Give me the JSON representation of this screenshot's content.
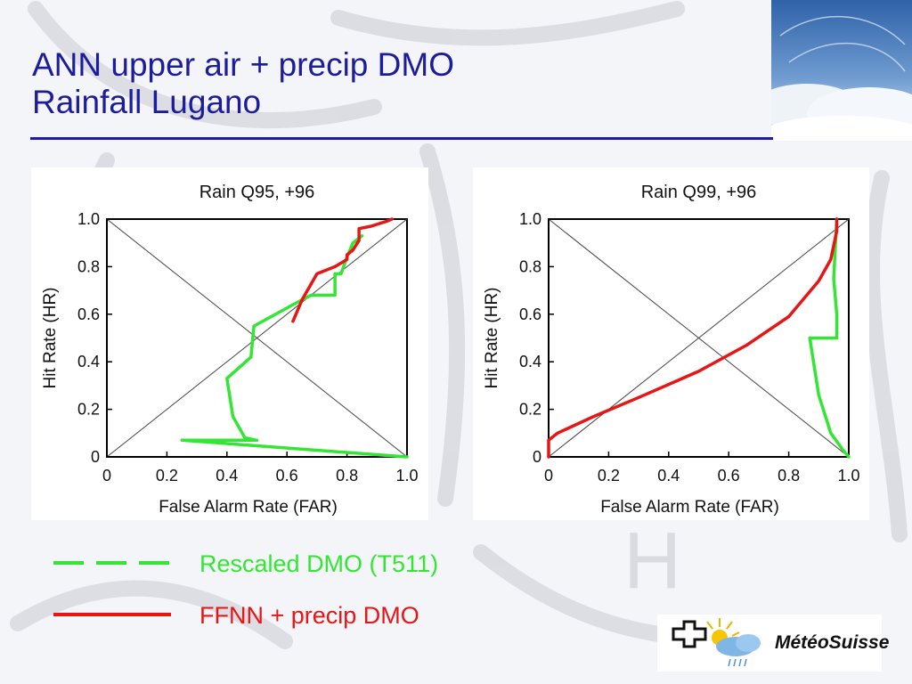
{
  "slide": {
    "title_line1": "ANN upper air + precip DMO",
    "title_line2": "Rainfall Lugano",
    "colors": {
      "title": "#1c1c9c",
      "green": "#33e633",
      "red": "#e81515"
    }
  },
  "legend": {
    "items": [
      {
        "label": "Rescaled DMO (T511)",
        "color": "#33e633",
        "style": "dashed"
      },
      {
        "label": "FFNN + precip DMO",
        "color": "#e81515",
        "style": "solid"
      }
    ]
  },
  "logo": {
    "text": "MétéoSuisse"
  },
  "chart_data": [
    {
      "type": "line",
      "title": "Rain Q95, +96",
      "xlabel": "False Alarm Rate (FAR)",
      "ylabel": "Hit Rate (HR)",
      "xlim": [
        0,
        1
      ],
      "ylim": [
        0,
        1
      ],
      "xticks": [
        "0",
        "0.2",
        "0.4",
        "0.6",
        "0.8",
        "1.0"
      ],
      "yticks": [
        "0",
        "0.2",
        "0.4",
        "0.6",
        "0.8",
        "1.0"
      ],
      "reference_lines": [
        "diagonal",
        "anti-diagonal"
      ],
      "series": [
        {
          "color": "#33e633",
          "x": [
            1.0,
            0.25,
            0.5,
            0.46,
            0.42,
            0.4,
            0.48,
            0.49,
            0.62,
            0.68,
            0.76,
            0.76,
            0.78,
            0.8,
            0.82,
            0.85
          ],
          "y": [
            0.0,
            0.07,
            0.07,
            0.08,
            0.17,
            0.33,
            0.42,
            0.55,
            0.64,
            0.68,
            0.68,
            0.77,
            0.77,
            0.84,
            0.9,
            0.93
          ]
        },
        {
          "color": "#e81515",
          "x": [
            0.62,
            0.65,
            0.7,
            0.76,
            0.8,
            0.8,
            0.82,
            0.84,
            0.84,
            0.88,
            0.93,
            0.95
          ],
          "y": [
            0.57,
            0.66,
            0.77,
            0.8,
            0.83,
            0.85,
            0.87,
            0.91,
            0.96,
            0.97,
            0.99,
            1.0
          ]
        }
      ]
    },
    {
      "type": "line",
      "title": "Rain Q99, +96",
      "xlabel": "False Alarm Rate (FAR)",
      "ylabel": "Hit Rate (HR)",
      "xlim": [
        0,
        1
      ],
      "ylim": [
        0,
        1
      ],
      "xticks": [
        "0",
        "0.2",
        "0.4",
        "0.6",
        "0.8",
        "1.0"
      ],
      "yticks": [
        "0",
        "0.2",
        "0.4",
        "0.6",
        "0.8",
        "1.0"
      ],
      "reference_lines": [
        "diagonal",
        "anti-diagonal"
      ],
      "series": [
        {
          "color": "#33e633",
          "x": [
            1.0,
            0.98,
            0.94,
            0.9,
            0.87,
            0.96,
            0.96,
            0.95,
            0.96
          ],
          "y": [
            0.0,
            0.03,
            0.1,
            0.26,
            0.5,
            0.5,
            0.6,
            0.75,
            1.0
          ]
        },
        {
          "color": "#e81515",
          "x": [
            0.0,
            0.0,
            0.03,
            0.15,
            0.3,
            0.5,
            0.66,
            0.8,
            0.9,
            0.94,
            0.96,
            0.96
          ],
          "y": [
            0.0,
            0.07,
            0.1,
            0.17,
            0.25,
            0.36,
            0.47,
            0.59,
            0.74,
            0.83,
            0.95,
            1.0
          ]
        }
      ]
    }
  ]
}
